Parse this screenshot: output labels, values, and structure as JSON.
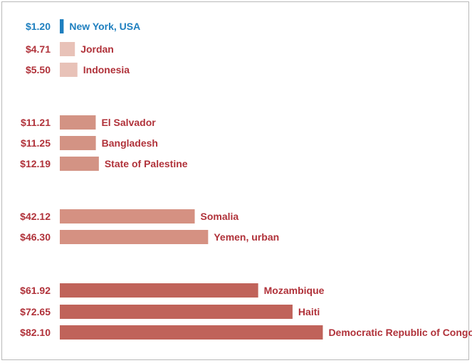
{
  "chart_data": {
    "type": "bar",
    "orientation": "horizontal",
    "title": "",
    "xlabel": "",
    "ylabel": "",
    "xlim": [
      0,
      82.1
    ],
    "grid": false,
    "legend": "none",
    "groups": [
      {
        "items": [
          {
            "category": "New York, USA",
            "value": 1.2,
            "label": "$1.20",
            "color": "#1e7fbf",
            "label_color": "#1e7fbf"
          },
          {
            "category": "Jordan",
            "value": 4.71,
            "label": "$4.71",
            "color": "#e8c2b8",
            "label_color": "#b0323a"
          },
          {
            "category": "Indonesia",
            "value": 5.5,
            "label": "$5.50",
            "color": "#e8c2b8",
            "label_color": "#b0323a"
          }
        ]
      },
      {
        "items": [
          {
            "category": "El Salvador",
            "value": 11.21,
            "label": "$11.21",
            "color": "#d39384",
            "label_color": "#b0323a"
          },
          {
            "category": "Bangladesh",
            "value": 11.25,
            "label": "$11.25",
            "color": "#d39384",
            "label_color": "#b0323a"
          },
          {
            "category": "State of Palestine",
            "value": 12.19,
            "label": "$12.19",
            "color": "#d39384",
            "label_color": "#b0323a"
          }
        ]
      },
      {
        "items": [
          {
            "category": "Somalia",
            "value": 42.12,
            "label": "$42.12",
            "color": "#d59182",
            "label_color": "#b0323a"
          },
          {
            "category": "Yemen, urban",
            "value": 46.3,
            "label": "$46.30",
            "color": "#d59182",
            "label_color": "#b0323a"
          }
        ]
      },
      {
        "items": [
          {
            "category": "Mozambique",
            "value": 61.92,
            "label": "$61.92",
            "color": "#c0635a",
            "label_color": "#b0323a"
          },
          {
            "category": "Haiti",
            "value": 72.65,
            "label": "$72.65",
            "color": "#c0635a",
            "label_color": "#b0323a"
          },
          {
            "category": "Democratic Republic of Congo",
            "value": 82.1,
            "label": "$82.10",
            "color": "#c0635a",
            "label_color": "#b0323a"
          }
        ]
      }
    ]
  }
}
